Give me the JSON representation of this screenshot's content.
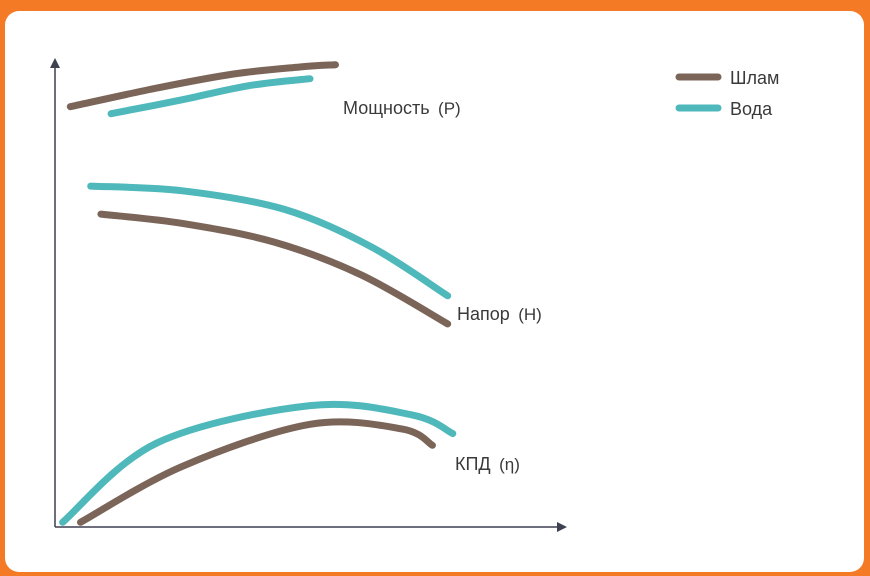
{
  "chart_data": {
    "type": "line",
    "axes": {
      "x_ticks": false,
      "y_ticks": false,
      "arrows": true
    },
    "legend": {
      "position": "top-right",
      "entries": [
        {
          "name": "Шлам",
          "color": "#7b6559"
        },
        {
          "name": "Вода",
          "color": "#4eb8bb"
        }
      ]
    },
    "curve_labels": {
      "power": {
        "text": "Мощность",
        "symbol": "(P)"
      },
      "head": {
        "text": "Напор",
        "symbol": "(H)"
      },
      "efficiency": {
        "text": "КПД",
        "symbol": "(η)"
      }
    },
    "series": [
      {
        "name": "Шлам",
        "curve": "power",
        "x": [
          0.03,
          0.2,
          0.35,
          0.48,
          0.55
        ],
        "y": [
          0.9,
          0.94,
          0.97,
          0.985,
          0.99
        ]
      },
      {
        "name": "Вода",
        "curve": "power",
        "x": [
          0.11,
          0.25,
          0.38,
          0.5
        ],
        "y": [
          0.885,
          0.915,
          0.945,
          0.96
        ]
      },
      {
        "name": "Шлам",
        "curve": "head",
        "x": [
          0.09,
          0.25,
          0.43,
          0.6,
          0.77
        ],
        "y": [
          0.67,
          0.65,
          0.61,
          0.54,
          0.435
        ]
      },
      {
        "name": "Вода",
        "curve": "head",
        "x": [
          0.07,
          0.25,
          0.45,
          0.62,
          0.77
        ],
        "y": [
          0.73,
          0.72,
          0.68,
          0.6,
          0.495
        ]
      },
      {
        "name": "Шлам",
        "curve": "efficiency",
        "x": [
          0.05,
          0.25,
          0.5,
          0.68,
          0.74
        ],
        "y": [
          0.01,
          0.13,
          0.22,
          0.21,
          0.175
        ]
      },
      {
        "name": "Вода",
        "curve": "efficiency",
        "x": [
          0.015,
          0.2,
          0.5,
          0.7,
          0.78
        ],
        "y": [
          0.01,
          0.18,
          0.26,
          0.24,
          0.2
        ]
      }
    ]
  }
}
